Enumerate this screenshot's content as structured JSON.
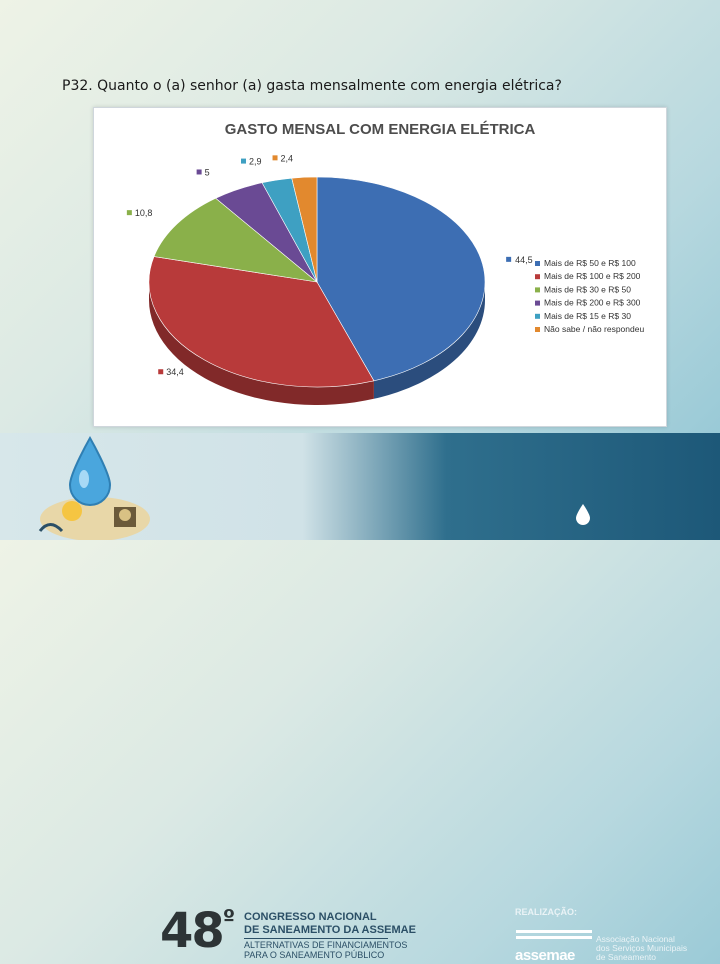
{
  "question": "P32. Quanto o (a) senhor (a) gasta mensalmente com energia elétrica?",
  "chart_data": {
    "type": "pie",
    "title": "GASTO MENSAL COM ENERGIA ELÉTRICA",
    "legend_position": "right",
    "slices": [
      {
        "label": "Mais de R$ 50 e R$ 100",
        "value": 44.5,
        "value_label": "44,5",
        "color": "#3d6eb3"
      },
      {
        "label": "Mais de R$ 100 e R$ 200",
        "value": 34.4,
        "value_label": "34,4",
        "color": "#b83a3a"
      },
      {
        "label": "Mais de R$ 30 e R$ 50",
        "value": 10.8,
        "value_label": "10,8",
        "color": "#8ab04a"
      },
      {
        "label": "Mais de R$ 200 e R$ 300",
        "value": 5,
        "value_label": "5",
        "color": "#6a4a94"
      },
      {
        "label": "Mais de R$ 15 e R$ 30",
        "value": 2.9,
        "value_label": "2,9",
        "color": "#3ea0c2"
      },
      {
        "label": "Não sabe / não respondeu",
        "value": 2.4,
        "value_label": "2,4",
        "color": "#e2892e"
      }
    ]
  },
  "footer": {
    "edition": "48",
    "edition_suffix": "º",
    "congress_line1": "CONGRESSO NACIONAL",
    "congress_line2": "DE SANEAMENTO DA ASSEMAE",
    "subtitle_line1": "ALTERNATIVAS DE FINANCIAMENTOS",
    "subtitle_line2": "PARA O SANEAMENTO PÚBLICO",
    "realizacao": "REALIZAÇÃO:",
    "org_short": "assemae",
    "org_line1": "Associação Nacional",
    "org_line2": "dos Serviços Municipais",
    "org_line3": "de Saneamento"
  }
}
